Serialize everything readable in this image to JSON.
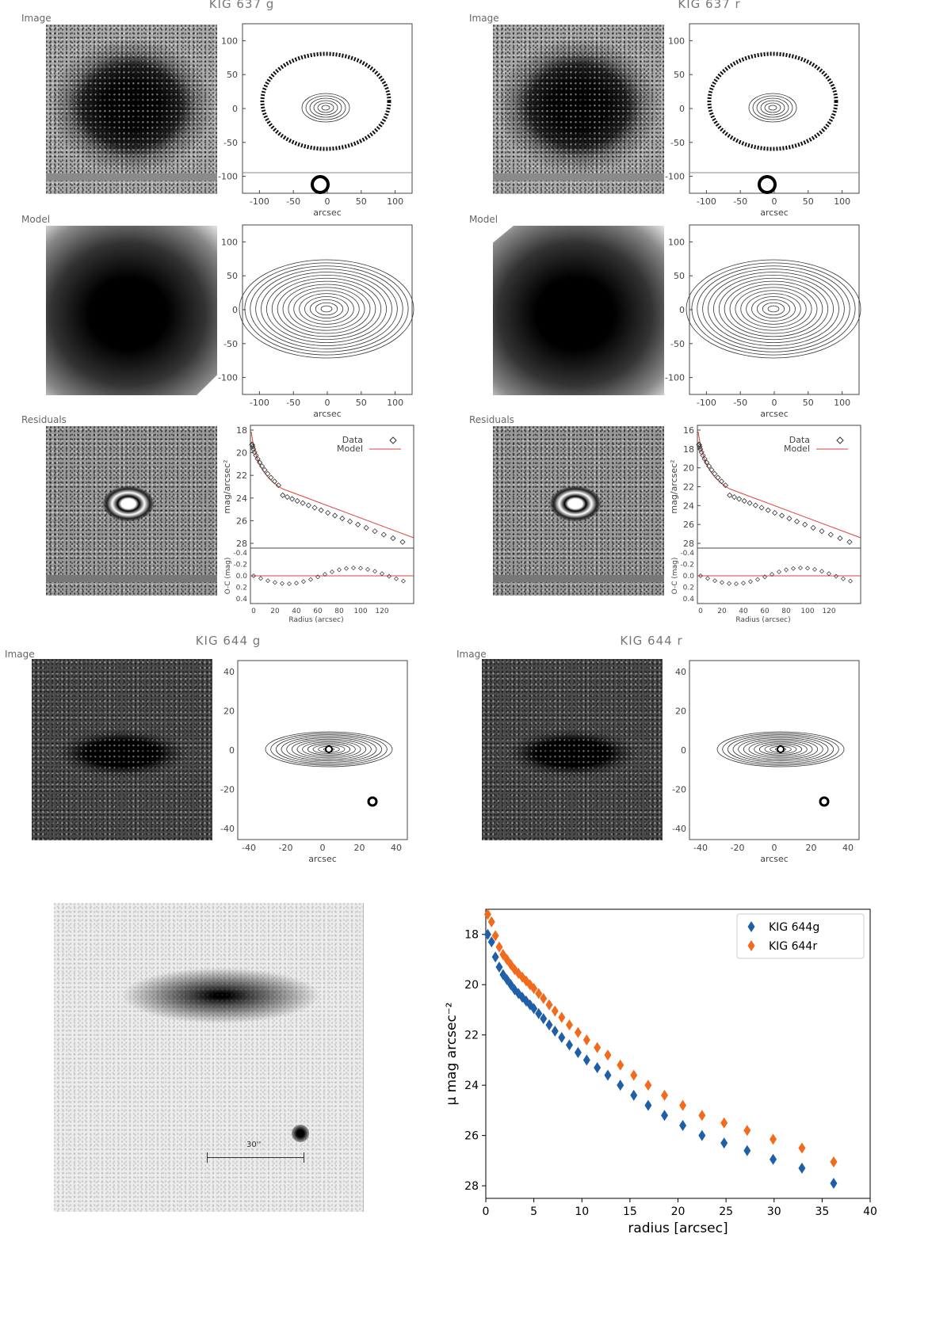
{
  "kig637": {
    "title_g": "KIG 637 g",
    "title_r": "KIG 637 r",
    "row_image": "Image",
    "row_model": "Model",
    "row_residuals": "Residuals",
    "axis_ticks": [
      "-100",
      "-50",
      "0",
      "50",
      "100"
    ],
    "axis_label": "arcsec",
    "profile_yticks_g": [
      "18",
      "20",
      "22",
      "24",
      "26",
      "28"
    ],
    "profile_yticks_r": [
      "16",
      "18",
      "20",
      "22",
      "24",
      "26",
      "28"
    ],
    "profile_ylabel": "mag/arcsec²",
    "resid_yticks": [
      "-0.4",
      "-0.2",
      "0.0",
      "0.2",
      "0.4"
    ],
    "resid_ylabel": "O-C (mag)",
    "radius_ticks": [
      "0",
      "20",
      "40",
      "60",
      "80",
      "100",
      "120"
    ],
    "radius_label": "Radius (arcsec)",
    "legend_data": "Data",
    "legend_model": "Model"
  },
  "kig644": {
    "title_g": "KIG 644 g",
    "title_r": "KIG 644 r",
    "row_image": "Image",
    "axis_ticks_y": [
      "40",
      "20",
      "0",
      "-20",
      "-40"
    ],
    "axis_ticks_x": [
      "-40",
      "-20",
      "0",
      "20",
      "40"
    ],
    "axis_label": "arcsec"
  },
  "bottom_image": {
    "scalebar_label": "30''"
  },
  "colors": {
    "series_g": "#1f5fa8",
    "series_r": "#f26b1d",
    "model_line": "#e0403a"
  },
  "chart_data": [
    {
      "type": "scatter",
      "xlabel": "radius [arcsec]",
      "ylabel": "μ mag arcsec⁻²",
      "xlim": [
        0,
        40
      ],
      "ylim": [
        28.5,
        17
      ],
      "y_inverted": true,
      "xticks": [
        0,
        5,
        10,
        15,
        20,
        25,
        30,
        35,
        40
      ],
      "yticks": [
        18,
        20,
        22,
        24,
        26,
        28
      ],
      "legend_position": "top-right",
      "series": [
        {
          "name": "KIG 644g",
          "color": "#1f5fa8",
          "x": [
            0.2,
            0.6,
            1.0,
            1.4,
            1.8,
            2.2,
            2.6,
            3.0,
            3.4,
            3.8,
            4.2,
            4.6,
            5.0,
            5.5,
            6.0,
            6.6,
            7.2,
            7.9,
            8.7,
            9.6,
            10.5,
            11.6,
            12.7,
            14.0,
            15.4,
            16.9,
            18.6,
            20.5,
            22.5,
            24.8,
            27.2,
            29.9,
            32.9,
            36.2
          ],
          "y": [
            18.0,
            18.3,
            18.9,
            19.3,
            19.6,
            19.8,
            20.0,
            20.2,
            20.35,
            20.5,
            20.65,
            20.8,
            20.95,
            21.15,
            21.35,
            21.6,
            21.85,
            22.1,
            22.4,
            22.7,
            23.0,
            23.3,
            23.6,
            24.0,
            24.4,
            24.8,
            25.2,
            25.6,
            26.0,
            26.3,
            26.6,
            26.95,
            27.3,
            27.9
          ]
        },
        {
          "name": "KIG 644r",
          "color": "#f26b1d",
          "x": [
            0.2,
            0.6,
            1.0,
            1.4,
            1.8,
            2.2,
            2.6,
            3.0,
            3.4,
            3.8,
            4.2,
            4.6,
            5.0,
            5.5,
            6.0,
            6.6,
            7.2,
            7.9,
            8.7,
            9.6,
            10.5,
            11.6,
            12.7,
            14.0,
            15.4,
            16.9,
            18.6,
            20.5,
            22.5,
            24.8,
            27.2,
            29.9,
            32.9,
            36.2
          ],
          "y": [
            17.2,
            17.5,
            18.05,
            18.5,
            18.8,
            19.0,
            19.2,
            19.4,
            19.55,
            19.7,
            19.85,
            20.0,
            20.15,
            20.35,
            20.55,
            20.8,
            21.05,
            21.3,
            21.6,
            21.9,
            22.2,
            22.5,
            22.8,
            23.2,
            23.6,
            24.0,
            24.4,
            24.8,
            25.2,
            25.5,
            25.8,
            26.15,
            26.5,
            27.05
          ]
        }
      ]
    }
  ]
}
